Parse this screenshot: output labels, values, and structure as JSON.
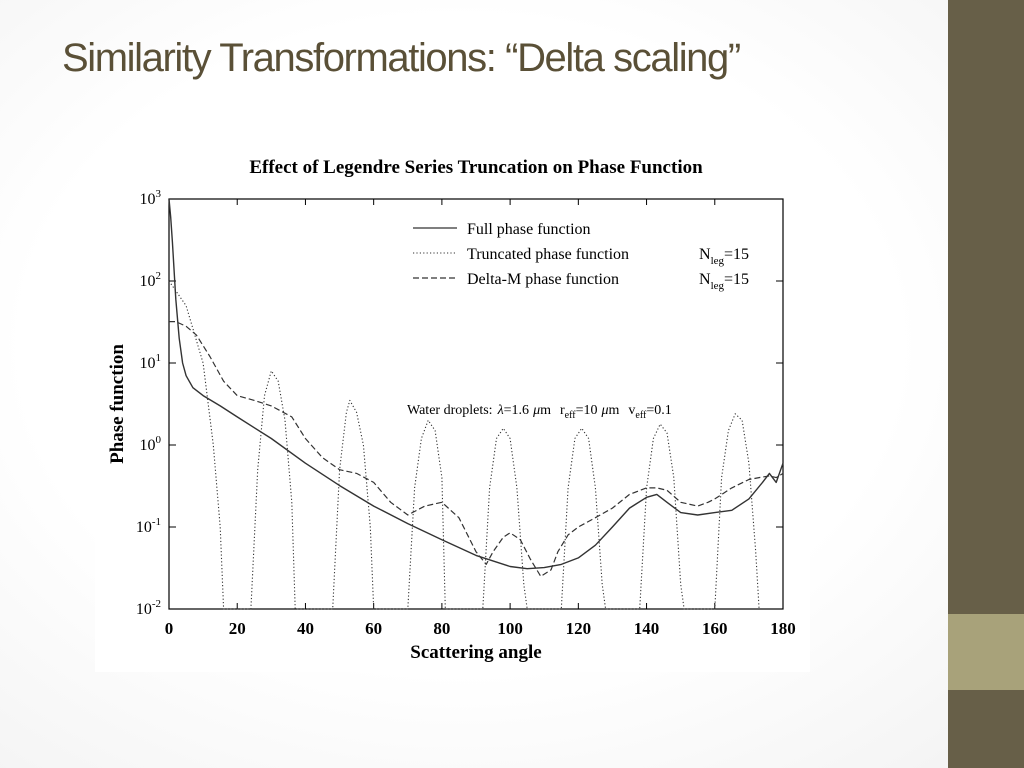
{
  "slide": {
    "title": "Similarity Transformations: “Delta scaling”",
    "colors": {
      "title": "#5a5037",
      "sidebar": "#675f48",
      "sidebar_accent": "#a8a27a"
    }
  },
  "chart_data": {
    "type": "line",
    "title": "Effect of Legendre Series Truncation on Phase Function",
    "xlabel": "Scattering angle",
    "ylabel": "Phase function",
    "xlim": [
      0,
      180
    ],
    "ylim": [
      0.01,
      1000
    ],
    "yscale": "log",
    "xticks": [
      0,
      20,
      40,
      60,
      80,
      100,
      120,
      140,
      160,
      180
    ],
    "xtick_labels": [
      "0",
      "20",
      "40",
      "60",
      "80",
      "100",
      "120",
      "140",
      "160",
      "180"
    ],
    "yticks": [
      0.01,
      0.1,
      1,
      10,
      100,
      1000
    ],
    "ytick_labels": [
      {
        "base": "10",
        "exp": "-2"
      },
      {
        "base": "10",
        "exp": "-1"
      },
      {
        "base": "10",
        "exp": "0"
      },
      {
        "base": "10",
        "exp": "1"
      },
      {
        "base": "10",
        "exp": "2"
      },
      {
        "base": "10",
        "exp": "3"
      }
    ],
    "grid": false,
    "legend_position": "top-right",
    "annotation": {
      "prefix": "Water droplets:",
      "lambda_sym": "λ",
      "lambda_val": "=1.6",
      "mu": "μ",
      "lambda_unit": "m",
      "r_main": "r",
      "r_sub": "eff",
      "r_val": "=10",
      "r_unit": "m",
      "v_main": "v",
      "v_sub": "eff",
      "v_val": "=0.1"
    },
    "series": [
      {
        "name": "Full phase function",
        "style": "solid",
        "x": [
          0,
          0.5,
          1,
          2,
          3,
          4,
          5,
          7,
          10,
          15,
          20,
          30,
          40,
          50,
          60,
          70,
          80,
          90,
          100,
          105,
          110,
          115,
          120,
          125,
          130,
          135,
          140,
          143,
          146,
          150,
          155,
          160,
          165,
          170,
          174,
          176,
          178,
          180
        ],
        "y": [
          1000,
          600,
          300,
          60,
          20,
          10,
          7,
          5,
          4,
          3,
          2.2,
          1.2,
          0.6,
          0.32,
          0.18,
          0.11,
          0.07,
          0.045,
          0.033,
          0.031,
          0.032,
          0.035,
          0.042,
          0.06,
          0.1,
          0.17,
          0.23,
          0.25,
          0.2,
          0.15,
          0.14,
          0.15,
          0.16,
          0.22,
          0.35,
          0.45,
          0.35,
          0.6
        ]
      },
      {
        "name": "Truncated phase function",
        "name_main": "N",
        "name_sub": "leg",
        "name_val": "=15",
        "style": "dotted",
        "x": [
          0,
          5,
          10,
          13,
          15,
          16,
          24,
          26,
          28,
          30,
          32,
          34,
          36,
          37,
          48,
          50,
          52,
          53,
          55,
          57,
          59,
          60,
          70,
          72,
          74,
          76,
          78,
          80,
          81,
          92,
          94,
          96,
          98,
          100,
          102,
          104,
          105,
          115,
          117,
          119,
          121,
          123,
          125,
          127,
          128,
          138,
          140,
          142,
          144,
          146,
          148,
          150,
          151,
          160,
          162,
          164,
          166,
          168,
          170,
          172,
          173
        ],
        "y": [
          100,
          50,
          10,
          1,
          0.1,
          0.01,
          0.01,
          0.5,
          4,
          8,
          6,
          2,
          0.2,
          0.01,
          0.01,
          0.5,
          2.5,
          3.5,
          2.5,
          1,
          0.1,
          0.01,
          0.01,
          0.3,
          1.2,
          2,
          1.5,
          0.4,
          0.01,
          0.01,
          0.3,
          1.2,
          1.6,
          1.2,
          0.3,
          0.02,
          0.01,
          0.01,
          0.3,
          1.2,
          1.6,
          1.2,
          0.3,
          0.02,
          0.01,
          0.01,
          0.3,
          1.2,
          1.8,
          1.4,
          0.4,
          0.02,
          0.01,
          0.01,
          0.4,
          1.5,
          2.4,
          2,
          0.6,
          0.05,
          0.01
        ]
      },
      {
        "name": "Delta-M phase function",
        "name_main": "N",
        "name_sub": "leg",
        "name_val": "=15",
        "style": "dashed",
        "x": [
          0,
          2,
          5,
          8,
          12,
          16,
          20,
          25,
          30,
          36,
          40,
          45,
          50,
          55,
          60,
          65,
          70,
          75,
          80,
          85,
          90,
          93,
          95,
          98,
          100,
          103,
          106,
          109,
          112,
          114,
          117,
          120,
          125,
          130,
          135,
          140,
          143,
          146,
          150,
          155,
          158,
          160,
          165,
          170,
          173,
          176,
          178,
          180
        ],
        "y": [
          32,
          32,
          28,
          22,
          12,
          6,
          4,
          3.5,
          3,
          2.2,
          1.2,
          0.7,
          0.5,
          0.45,
          0.35,
          0.2,
          0.14,
          0.18,
          0.2,
          0.13,
          0.05,
          0.035,
          0.05,
          0.075,
          0.085,
          0.07,
          0.04,
          0.025,
          0.03,
          0.05,
          0.08,
          0.1,
          0.13,
          0.17,
          0.25,
          0.3,
          0.3,
          0.28,
          0.2,
          0.18,
          0.2,
          0.22,
          0.3,
          0.38,
          0.4,
          0.42,
          0.4,
          0.45
        ]
      }
    ]
  }
}
